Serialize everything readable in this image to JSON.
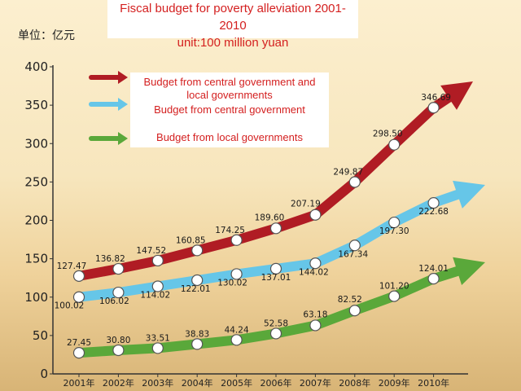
{
  "header": {
    "title": "Fiscal budget for poverty alleviation 2001-2010",
    "subtitle": "unit:100 million yuan",
    "unit_label": "单位：亿元"
  },
  "legend": {
    "items": [
      {
        "label_line1": "Budget from central government and",
        "label_line2": "local governments",
        "arrow_color": "#b01c24"
      },
      {
        "label": "Budget from central government",
        "arrow_color": "#66c6e8"
      },
      {
        "label": "Budget from local governments",
        "arrow_color": "#5aa83a"
      }
    ]
  },
  "chart_data": {
    "type": "line",
    "title": "Fiscal budget for poverty alleviation 2001-2010",
    "subtitle": "unit:100 million yuan",
    "ylabel": "单位：亿元",
    "xlabel": "",
    "categories": [
      "2001年",
      "2002年",
      "2003年",
      "2004年",
      "2005年",
      "2006年",
      "2007年",
      "2008年",
      "2009年",
      "2010年"
    ],
    "yticks": [
      "0",
      "50",
      "100",
      "150",
      "200",
      "250",
      "300",
      "350",
      "400"
    ],
    "ylim": [
      0,
      400
    ],
    "grid": false,
    "series": [
      {
        "name": "Budget from central government and local governments",
        "color": "#b01c24",
        "values": [
          127.47,
          136.82,
          147.52,
          160.85,
          174.25,
          189.6,
          207.19,
          249.87,
          298.5,
          346.69
        ],
        "labels": [
          "127.47",
          "136.82",
          "147.52",
          "160.85",
          "174.25",
          "189.60",
          "207.19",
          "249.87",
          "298.50",
          "346.69"
        ]
      },
      {
        "name": "Budget from central government",
        "color": "#66c6e8",
        "values": [
          100.02,
          106.02,
          114.02,
          122.01,
          130.02,
          137.01,
          144.02,
          167.34,
          197.3,
          222.68
        ],
        "labels": [
          "100.02",
          "106.02",
          "114.02",
          "122.01",
          "130.02",
          "137.01",
          "144.02",
          "167.34",
          "197.30",
          "222.68"
        ]
      },
      {
        "name": "Budget from local governments",
        "color": "#5aa83a",
        "values": [
          27.45,
          30.8,
          33.51,
          38.83,
          44.24,
          52.58,
          63.18,
          82.52,
          101.2,
          124.01
        ],
        "labels": [
          "27.45",
          "30.80",
          "33.51",
          "38.83",
          "44.24",
          "52.58",
          "63.18",
          "82.52",
          "101.20",
          "124.01"
        ]
      }
    ]
  }
}
